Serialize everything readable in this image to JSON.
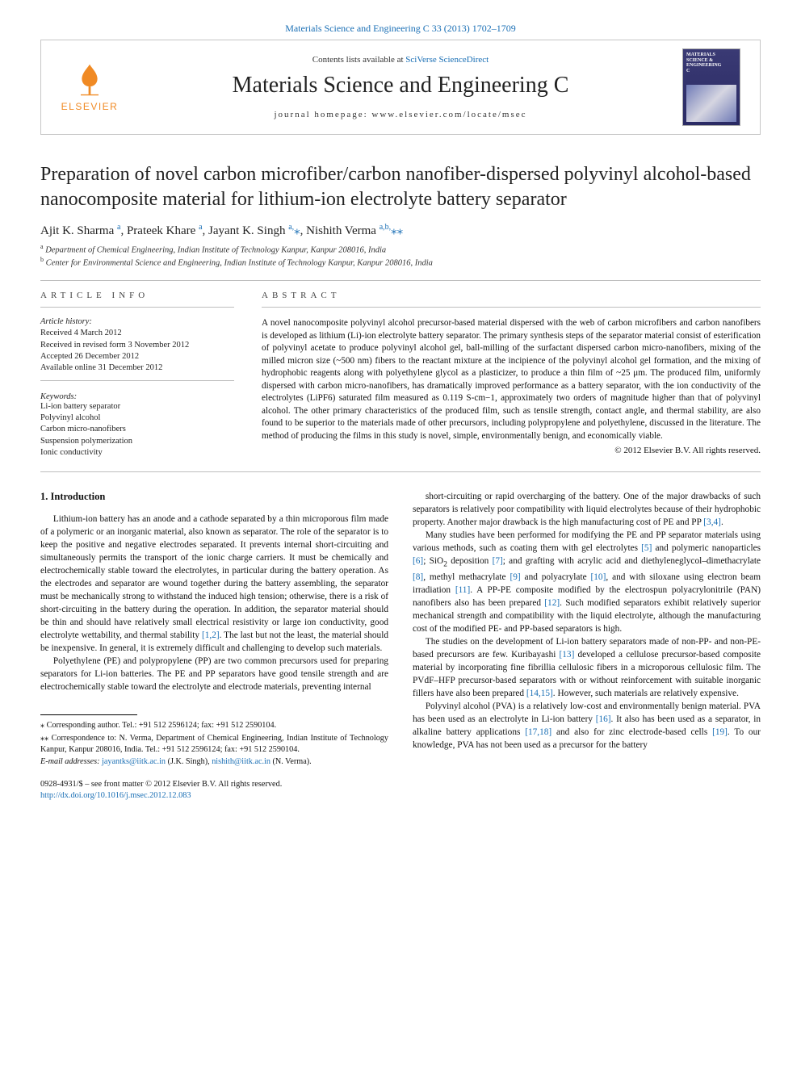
{
  "top_citation": "Materials Science and Engineering C 33 (2013) 1702–1709",
  "masthead": {
    "contents_prefix": "Contents lists available at ",
    "contents_link": "SciVerse ScienceDirect",
    "journal": "Materials Science and Engineering C",
    "homepage_prefix": "journal homepage: ",
    "homepage_url": "www.elsevier.com/locate/msec",
    "publisher": "ELSEVIER",
    "cover_label_top": "MATERIALS SCIENCE & ENGINEERING",
    "cover_label_bot": "C"
  },
  "title": "Preparation of novel carbon microfiber/carbon nanofiber-dispersed polyvinyl alcohol-based nanocomposite material for lithium-ion electrolyte battery separator",
  "authors_html": "Ajit K. Sharma <sup>a</sup>, Prateek Khare <sup>a</sup>, Jayant K. Singh <sup>a,</sup><a>⁎</a>, Nishith Verma <sup>a,b,</sup><a>⁎⁎</a>",
  "affils": {
    "a": "Department of Chemical Engineering, Indian Institute of Technology Kanpur, Kanpur 208016, India",
    "b": "Center for Environmental Science and Engineering, Indian Institute of Technology Kanpur, Kanpur 208016, India"
  },
  "article_info": {
    "heading": "article info",
    "history_head": "Article history:",
    "history": [
      "Received 4 March 2012",
      "Received in revised form 3 November 2012",
      "Accepted 26 December 2012",
      "Available online 31 December 2012"
    ],
    "keywords_head": "Keywords:",
    "keywords": [
      "Li-ion battery separator",
      "Polyvinyl alcohol",
      "Carbon micro-nanofibers",
      "Suspension polymerization",
      "Ionic conductivity"
    ]
  },
  "abstract": {
    "heading": "abstract",
    "text": "A novel nanocomposite polyvinyl alcohol precursor-based material dispersed with the web of carbon microfibers and carbon nanofibers is developed as lithium (Li)-ion electrolyte battery separator. The primary synthesis steps of the separator material consist of esterification of polyvinyl acetate to produce polyvinyl alcohol gel, ball-milling of the surfactant dispersed carbon micro-nanofibers, mixing of the milled micron size (~500 nm) fibers to the reactant mixture at the incipience of the polyvinyl alcohol gel formation, and the mixing of hydrophobic reagents along with polyethylene glycol as a plasticizer, to produce a thin film of ~25 μm. The produced film, uniformly dispersed with carbon micro-nanofibers, has dramatically improved performance as a battery separator, with the ion conductivity of the electrolytes (LiPF6) saturated film measured as 0.119 S-cm−1, approximately two orders of magnitude higher than that of polyvinyl alcohol. The other primary characteristics of the produced film, such as tensile strength, contact angle, and thermal stability, are also found to be superior to the materials made of other precursors, including polypropylene and polyethylene, discussed in the literature. The method of producing the films in this study is novel, simple, environmentally benign, and economically viable.",
    "copyright": "© 2012 Elsevier B.V. All rights reserved."
  },
  "section1_heading": "1. Introduction",
  "paras": [
    "Lithium-ion battery has an anode and a cathode separated by a thin microporous film made of a polymeric or an inorganic material, also known as separator. The role of the separator is to keep the positive and negative electrodes separated. It prevents internal short-circuiting and simultaneously permits the transport of the ionic charge carriers. It must be chemically and electrochemically stable toward the electrolytes, in particular during the battery operation. As the electrodes and separator are wound together during the battery assembling, the separator must be mechanically strong to withstand the induced high tension; otherwise, there is a risk of short-circuiting in the battery during the operation. In addition, the separator material should be thin and should have relatively small electrical resistivity or large ion conductivity, good electrolyte wettability, and thermal stability <span class=\"cite\">[1,2]</span>. The last but not the least, the material should be inexpensive. In general, it is extremely difficult and challenging to develop such materials.",
    "Polyethylene (PE) and polypropylene (PP) are two common precursors used for preparing separators for Li-ion batteries. The PE and PP separators have good tensile strength and are electrochemically stable toward the electrolyte and electrode materials, preventing internal",
    "short-circuiting or rapid overcharging of the battery. One of the major drawbacks of such separators is relatively poor compatibility with liquid electrolytes because of their hydrophobic property. Another major drawback is the high manufacturing cost of PE and PP <span class=\"cite\">[3,4]</span>.",
    "Many studies have been performed for modifying the PE and PP separator materials using various methods, such as coating them with gel electrolytes <span class=\"cite\">[5]</span> and polymeric nanoparticles <span class=\"cite\">[6]</span>; SiO<sub>2</sub> deposition <span class=\"cite\">[7]</span>; and grafting with acrylic acid and diethyleneglycol–dimethacrylate <span class=\"cite\">[8]</span>, methyl methacrylate <span class=\"cite\">[9]</span> and polyacrylate <span class=\"cite\">[10]</span>, and with siloxane using electron beam irradiation <span class=\"cite\">[11]</span>. A PP-PE composite modified by the electrospun polyacrylonitrile (PAN) nanofibers also has been prepared <span class=\"cite\">[12]</span>. Such modified separators exhibit relatively superior mechanical strength and compatibility with the liquid electrolyte, although the manufacturing cost of the modified PE- and PP-based separators is high.",
    "The studies on the development of Li-ion battery separators made of non-PP- and non-PE-based precursors are few. Kuribayashi <span class=\"cite\">[13]</span> developed a cellulose precursor-based composite material by incorporating fine fibrillia cellulosic fibers in a microporous cellulosic film. The PVdF–HFP precursor-based separators with or without reinforcement with suitable inorganic fillers have also been prepared <span class=\"cite\">[14,15]</span>. However, such materials are relatively expensive.",
    "Polyvinyl alcohol (PVA) is a relatively low-cost and environmentally benign material. PVA has been used as an electrolyte in Li-ion battery <span class=\"cite\">[16]</span>. It also has been used as a separator, in alkaline battery applications <span class=\"cite\">[17,18]</span> and also for zinc electrode-based cells <span class=\"cite\">[19]</span>. To our knowledge, PVA has not been used as a precursor for the battery"
  ],
  "footnotes": {
    "corr1": "⁎ Corresponding author. Tel.: +91 512 2596124; fax: +91 512 2590104.",
    "corr2": "⁎⁎ Correspondence to: N. Verma, Department of Chemical Engineering, Indian Institute of Technology Kanpur, Kanpur 208016, India. Tel.: +91 512 2596124; fax: +91 512 2590104.",
    "emails_label": "E-mail addresses:",
    "email1": "jayantks@iitk.ac.in",
    "email1_who": "(J.K. Singh),",
    "email2": "nishith@iitk.ac.in",
    "email2_who": "(N. Verma)."
  },
  "slug": {
    "issn_line": "0928-4931/$ – see front matter © 2012 Elsevier B.V. All rights reserved.",
    "doi": "http://dx.doi.org/10.1016/j.msec.2012.12.083"
  }
}
